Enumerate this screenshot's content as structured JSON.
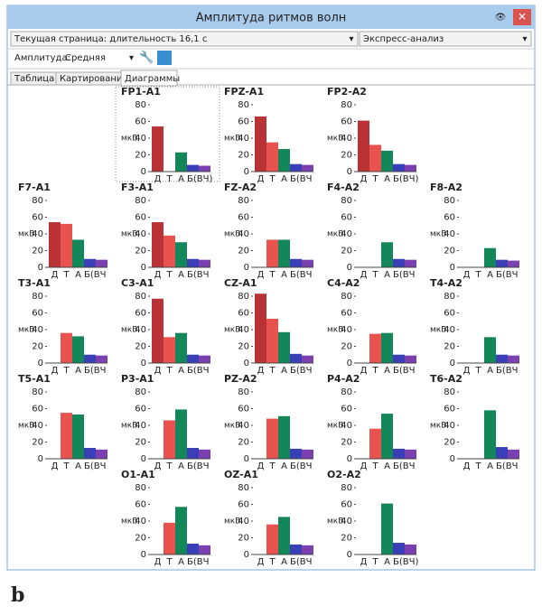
{
  "window": {
    "title": "Амплитуда ритмов волн",
    "page_select": "Текущая страница: длительность 16,1 с",
    "analysis_select": "Экспресс-анализ",
    "amplitude_label": "Амплитуда:",
    "amplitude_value": "Средняя",
    "tabs": [
      "Таблица",
      "Картирование",
      "Диаграммы"
    ],
    "caption": "b"
  },
  "chart_data": [
    {
      "type": "bar",
      "title": "FP1-A1",
      "ylabel": "мкВ",
      "categories": [
        "Д",
        "Т",
        "А",
        "Б(ВЧ)",
        null
      ],
      "values": [
        54,
        0,
        23,
        8,
        7
      ],
      "colors": [
        "#b83236",
        "#e8524f",
        "#13875a",
        "#3a3fb8",
        "#7a40b0"
      ],
      "ylim": [
        0,
        80
      ],
      "yticks": [
        0,
        20,
        40,
        60,
        80
      ]
    },
    {
      "type": "bar",
      "title": "FPZ-A1",
      "ylabel": "мкВ",
      "categories": [
        "Д",
        "Т",
        "А",
        "Б(ВЧ",
        null
      ],
      "values": [
        66,
        35,
        27,
        9,
        8
      ],
      "colors": [
        "#b83236",
        "#e8524f",
        "#13875a",
        "#3a3fb8",
        "#7a40b0"
      ],
      "ylim": [
        0,
        80
      ],
      "yticks": [
        0,
        20,
        40,
        60,
        80
      ]
    },
    {
      "type": "bar",
      "title": "FP2-A2",
      "ylabel": "мкВ",
      "categories": [
        "Д",
        "Т",
        "А",
        "Б(ВЧ)",
        null
      ],
      "values": [
        61,
        32,
        25,
        9,
        8
      ],
      "colors": [
        "#b83236",
        "#e8524f",
        "#13875a",
        "#3a3fb8",
        "#7a40b0"
      ],
      "ylim": [
        0,
        80
      ],
      "yticks": [
        0,
        20,
        40,
        60,
        80
      ]
    },
    {
      "type": "bar",
      "title": "F7-A1",
      "ylabel": "мкВ",
      "categories": [
        "Д",
        "Т",
        "А",
        "Б(ВЧ",
        null
      ],
      "values": [
        54,
        52,
        33,
        10,
        9
      ],
      "colors": [
        "#b83236",
        "#e8524f",
        "#13875a",
        "#3a3fb8",
        "#7a40b0"
      ],
      "ylim": [
        0,
        80
      ],
      "yticks": [
        0,
        20,
        40,
        60,
        80
      ]
    },
    {
      "type": "bar",
      "title": "F3-A1",
      "ylabel": "мкВ",
      "categories": [
        "Д",
        "Т",
        "А",
        "Б(ВЧ",
        null
      ],
      "values": [
        54,
        38,
        30,
        10,
        9
      ],
      "colors": [
        "#b83236",
        "#e8524f",
        "#13875a",
        "#3a3fb8",
        "#7a40b0"
      ],
      "ylim": [
        0,
        80
      ],
      "yticks": [
        0,
        20,
        40,
        60,
        80
      ]
    },
    {
      "type": "bar",
      "title": "FZ-A2",
      "ylabel": "мкВ",
      "categories": [
        "Д",
        "Т",
        "А",
        "Б(ВЧ",
        null
      ],
      "values": [
        0,
        33,
        33,
        10,
        9
      ],
      "colors": [
        "#b83236",
        "#e8524f",
        "#13875a",
        "#3a3fb8",
        "#7a40b0"
      ],
      "ylim": [
        0,
        80
      ],
      "yticks": [
        0,
        20,
        40,
        60,
        80
      ]
    },
    {
      "type": "bar",
      "title": "F4-A2",
      "ylabel": "мкВ",
      "categories": [
        "Д",
        "Т",
        "А",
        "Б(ВЧ",
        null
      ],
      "values": [
        0,
        0,
        30,
        10,
        9
      ],
      "colors": [
        "#b83236",
        "#e8524f",
        "#13875a",
        "#3a3fb8",
        "#7a40b0"
      ],
      "ylim": [
        0,
        80
      ],
      "yticks": [
        0,
        20,
        40,
        60,
        80
      ]
    },
    {
      "type": "bar",
      "title": "F8-A2",
      "ylabel": "мкВ",
      "categories": [
        "Д",
        "Т",
        "А",
        "Б(ВЧ",
        null
      ],
      "values": [
        0,
        0,
        23,
        9,
        8
      ],
      "colors": [
        "#b83236",
        "#e8524f",
        "#13875a",
        "#3a3fb8",
        "#7a40b0"
      ],
      "ylim": [
        0,
        80
      ],
      "yticks": [
        0,
        20,
        40,
        60,
        80
      ]
    },
    {
      "type": "bar",
      "title": "T3-A1",
      "ylabel": "мкВ",
      "categories": [
        "Д",
        "Т",
        "А",
        "Б(ВЧ",
        null
      ],
      "values": [
        0,
        36,
        32,
        10,
        9
      ],
      "colors": [
        "#b83236",
        "#e8524f",
        "#13875a",
        "#3a3fb8",
        "#7a40b0"
      ],
      "ylim": [
        0,
        80
      ],
      "yticks": [
        0,
        20,
        40,
        60,
        80
      ]
    },
    {
      "type": "bar",
      "title": "C3-A1",
      "ylabel": "мкВ",
      "categories": [
        "Д",
        "Т",
        "А",
        "Б(ВЧ",
        null
      ],
      "values": [
        77,
        31,
        36,
        10,
        9
      ],
      "colors": [
        "#b83236",
        "#e8524f",
        "#13875a",
        "#3a3fb8",
        "#7a40b0"
      ],
      "ylim": [
        0,
        80
      ],
      "yticks": [
        0,
        20,
        40,
        60,
        80
      ]
    },
    {
      "type": "bar",
      "title": "CZ-A1",
      "ylabel": "мкВ",
      "categories": [
        "Д",
        "Т",
        "А",
        "Б(ВЧ",
        null
      ],
      "values": [
        83,
        53,
        37,
        11,
        9
      ],
      "colors": [
        "#b83236",
        "#e8524f",
        "#13875a",
        "#3a3fb8",
        "#7a40b0"
      ],
      "ylim": [
        0,
        80
      ],
      "yticks": [
        0,
        20,
        40,
        60,
        80
      ]
    },
    {
      "type": "bar",
      "title": "C4-A2",
      "ylabel": "мкВ",
      "categories": [
        "Д",
        "Т",
        "А",
        "Б(ВЧ",
        null
      ],
      "values": [
        0,
        35,
        36,
        10,
        9
      ],
      "colors": [
        "#b83236",
        "#e8524f",
        "#13875a",
        "#3a3fb8",
        "#7a40b0"
      ],
      "ylim": [
        0,
        80
      ],
      "yticks": [
        0,
        20,
        40,
        60,
        80
      ]
    },
    {
      "type": "bar",
      "title": "T4-A2",
      "ylabel": "мкВ",
      "categories": [
        "Д",
        "Т",
        "А",
        "Б(ВЧ",
        null
      ],
      "values": [
        0,
        0,
        31,
        10,
        9
      ],
      "colors": [
        "#b83236",
        "#e8524f",
        "#13875a",
        "#3a3fb8",
        "#7a40b0"
      ],
      "ylim": [
        0,
        80
      ],
      "yticks": [
        0,
        20,
        40,
        60,
        80
      ]
    },
    {
      "type": "bar",
      "title": "T5-A1",
      "ylabel": "мкВ",
      "categories": [
        "Д",
        "Т",
        "А",
        "Б(ВЧ",
        null
      ],
      "values": [
        0,
        55,
        53,
        13,
        11
      ],
      "colors": [
        "#b83236",
        "#e8524f",
        "#13875a",
        "#3a3fb8",
        "#7a40b0"
      ],
      "ylim": [
        0,
        80
      ],
      "yticks": [
        0,
        20,
        40,
        60,
        80
      ]
    },
    {
      "type": "bar",
      "title": "P3-A1",
      "ylabel": "мкВ",
      "categories": [
        "Д",
        "Т",
        "А",
        "Б(ВЧ",
        null
      ],
      "values": [
        0,
        46,
        59,
        13,
        11
      ],
      "colors": [
        "#b83236",
        "#e8524f",
        "#13875a",
        "#3a3fb8",
        "#7a40b0"
      ],
      "ylim": [
        0,
        80
      ],
      "yticks": [
        0,
        20,
        40,
        60,
        80
      ]
    },
    {
      "type": "bar",
      "title": "PZ-A2",
      "ylabel": "мкВ",
      "categories": [
        "Д",
        "Т",
        "А",
        "Б(ВЧ",
        null
      ],
      "values": [
        0,
        48,
        51,
        12,
        11
      ],
      "colors": [
        "#b83236",
        "#e8524f",
        "#13875a",
        "#3a3fb8",
        "#7a40b0"
      ],
      "ylim": [
        0,
        80
      ],
      "yticks": [
        0,
        20,
        40,
        60,
        80
      ]
    },
    {
      "type": "bar",
      "title": "P4-A2",
      "ylabel": "мкВ",
      "categories": [
        "Д",
        "Т",
        "А",
        "Б(ВЧ",
        null
      ],
      "values": [
        0,
        36,
        54,
        12,
        11
      ],
      "colors": [
        "#b83236",
        "#e8524f",
        "#13875a",
        "#3a3fb8",
        "#7a40b0"
      ],
      "ylim": [
        0,
        80
      ],
      "yticks": [
        0,
        20,
        40,
        60,
        80
      ]
    },
    {
      "type": "bar",
      "title": "T6-A2",
      "ylabel": "мкВ",
      "categories": [
        "Д",
        "Т",
        "А",
        "Б(ВЧ",
        null
      ],
      "values": [
        0,
        0,
        58,
        14,
        11
      ],
      "colors": [
        "#b83236",
        "#e8524f",
        "#13875a",
        "#3a3fb8",
        "#7a40b0"
      ],
      "ylim": [
        0,
        80
      ],
      "yticks": [
        0,
        20,
        40,
        60,
        80
      ]
    },
    {
      "type": "bar",
      "title": "O1-A1",
      "ylabel": "мкВ",
      "categories": [
        "Д",
        "Т",
        "А",
        "Б(ВЧ",
        null
      ],
      "values": [
        0,
        38,
        57,
        13,
        11
      ],
      "colors": [
        "#b83236",
        "#e8524f",
        "#13875a",
        "#3a3fb8",
        "#7a40b0"
      ],
      "ylim": [
        0,
        80
      ],
      "yticks": [
        0,
        20,
        40,
        60,
        80
      ]
    },
    {
      "type": "bar",
      "title": "OZ-A1",
      "ylabel": "мкВ",
      "categories": [
        "Д",
        "Т",
        "А",
        "Б(ВЧ",
        null
      ],
      "values": [
        0,
        36,
        45,
        12,
        11
      ],
      "colors": [
        "#b83236",
        "#e8524f",
        "#13875a",
        "#3a3fb8",
        "#7a40b0"
      ],
      "ylim": [
        0,
        80
      ],
      "yticks": [
        0,
        20,
        40,
        60,
        80
      ]
    },
    {
      "type": "bar",
      "title": "O2-A2",
      "ylabel": "мкВ",
      "categories": [
        "Д",
        "Т",
        "А",
        "Б(ВЧ)",
        null
      ],
      "values": [
        0,
        0,
        61,
        14,
        12
      ],
      "colors": [
        "#b83236",
        "#e8524f",
        "#13875a",
        "#3a3fb8",
        "#7a40b0"
      ],
      "ylim": [
        0,
        80
      ],
      "yticks": [
        0,
        20,
        40,
        60,
        80
      ]
    }
  ]
}
